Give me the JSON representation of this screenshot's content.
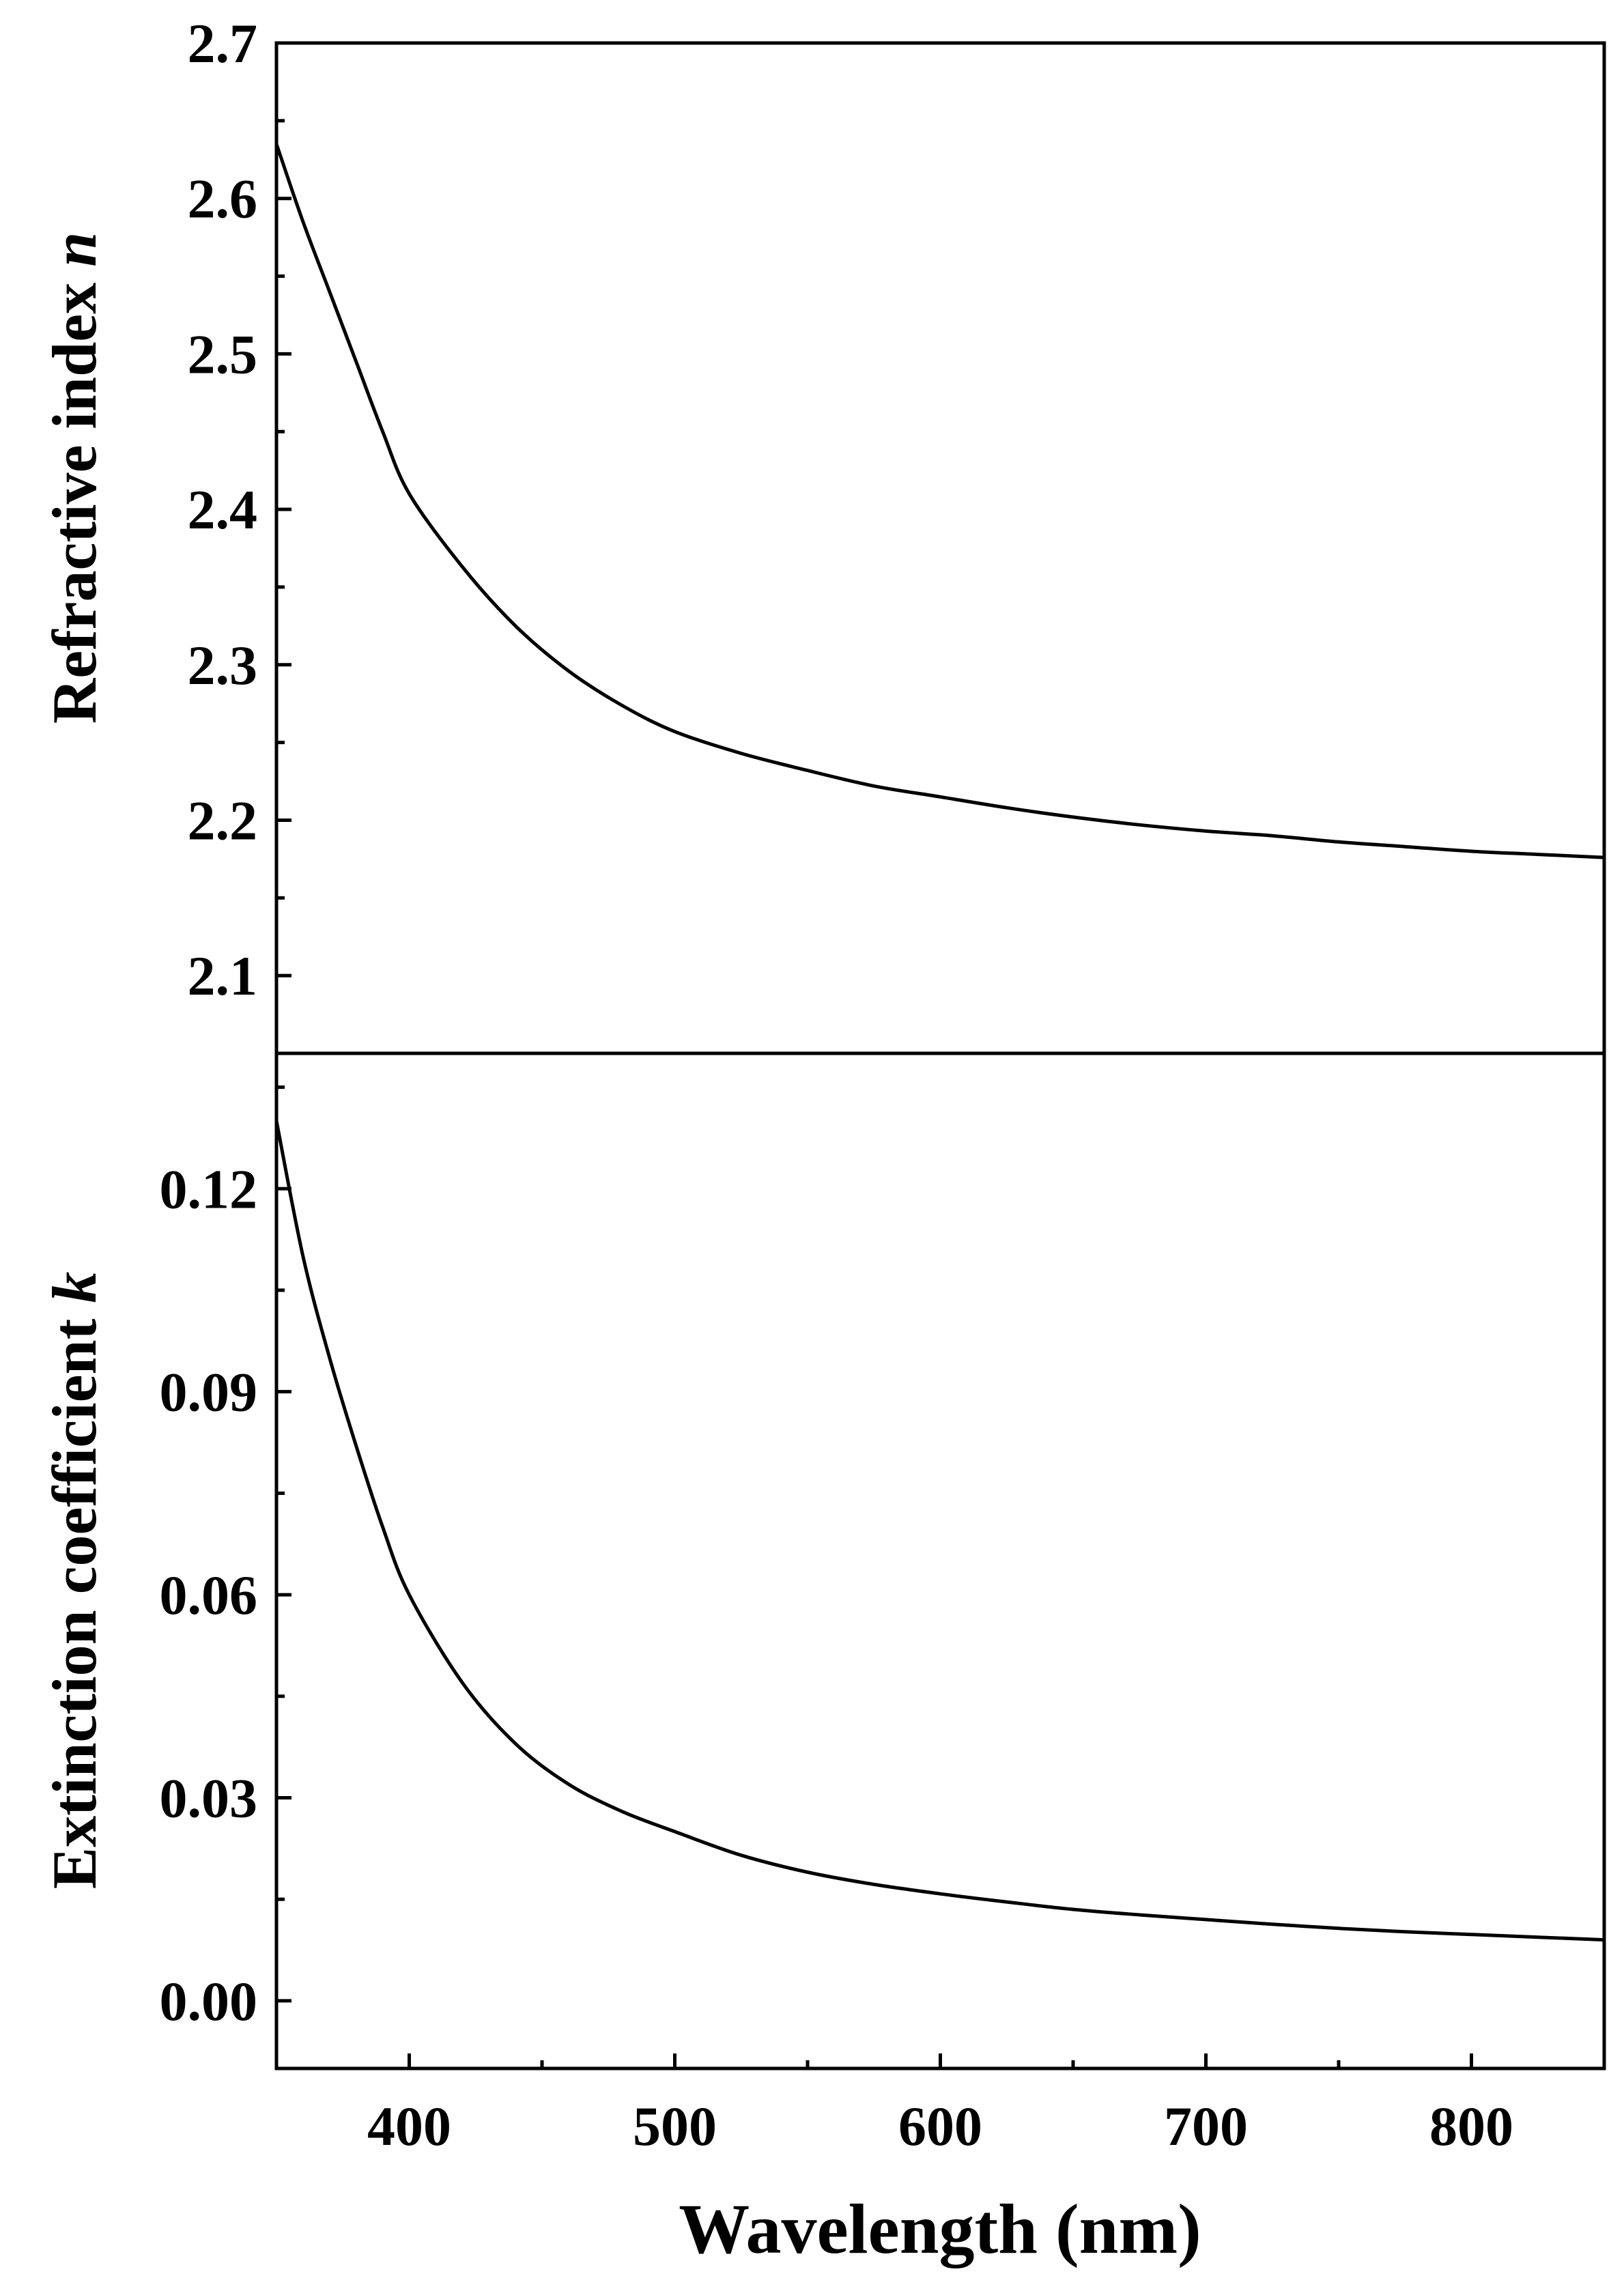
{
  "chart_data": [
    {
      "type": "line",
      "panel": "top",
      "ylabel": "Refractive index",
      "ylabel_symbol": "n",
      "xlim": [
        350,
        850
      ],
      "ylim": [
        2.05,
        2.7
      ],
      "yticks": [
        2.1,
        2.2,
        2.3,
        2.4,
        2.5,
        2.6,
        2.7
      ],
      "ytick_labels": [
        "2.1",
        "2.2",
        "2.3",
        "2.4",
        "2.5",
        "2.6",
        "2.7"
      ],
      "grid": false,
      "series": [
        {
          "color": "#000000",
          "x": [
            350,
            360,
            370,
            380,
            390,
            400,
            420,
            440,
            460,
            480,
            500,
            525,
            550,
            575,
            600,
            625,
            650,
            675,
            700,
            725,
            750,
            775,
            800,
            825,
            850
          ],
          "y": [
            2.635,
            2.585,
            2.54,
            2.495,
            2.45,
            2.41,
            2.363,
            2.325,
            2.296,
            2.274,
            2.257,
            2.243,
            2.232,
            2.222,
            2.215,
            2.208,
            2.202,
            2.197,
            2.193,
            2.19,
            2.186,
            2.183,
            2.18,
            2.178,
            2.176
          ]
        }
      ]
    },
    {
      "type": "line",
      "panel": "bottom",
      "ylabel": "Extinction coefficient",
      "ylabel_symbol": "k",
      "xlabel": "Wavelength (nm)",
      "xlim": [
        350,
        850
      ],
      "ylim": [
        -0.01,
        0.14
      ],
      "xticks": [
        400,
        500,
        600,
        700,
        800
      ],
      "xtick_labels": [
        "400",
        "500",
        "600",
        "700",
        "800"
      ],
      "yticks": [
        0.0,
        0.03,
        0.06,
        0.09,
        0.12
      ],
      "ytick_labels": [
        "0.00",
        "0.03",
        "0.06",
        "0.09",
        "0.12"
      ],
      "grid": false,
      "series": [
        {
          "color": "#000000",
          "x": [
            350,
            360,
            370,
            380,
            390,
            400,
            420,
            440,
            460,
            480,
            500,
            525,
            550,
            575,
            600,
            625,
            650,
            675,
            700,
            725,
            750,
            775,
            800,
            825,
            850
          ],
          "y": [
            0.13,
            0.11,
            0.095,
            0.082,
            0.07,
            0.06,
            0.047,
            0.038,
            0.032,
            0.028,
            0.025,
            0.0215,
            0.019,
            0.0172,
            0.0158,
            0.0146,
            0.0135,
            0.0127,
            0.012,
            0.0113,
            0.0107,
            0.0102,
            0.0098,
            0.0094,
            0.009
          ]
        }
      ]
    }
  ]
}
